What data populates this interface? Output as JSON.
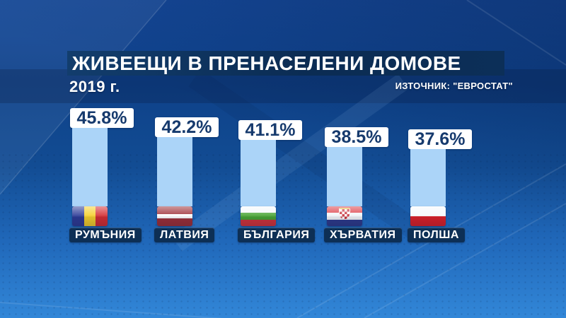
{
  "header": {
    "title": "ЖИВЕЕЩИ В ПРЕНАСЕЛЕНИ ДОМОВЕ",
    "year": "2019 г.",
    "source": "ИЗТОЧНИК: \"ЕВРОСТАТ\""
  },
  "chart_data": {
    "type": "bar",
    "title": "ЖИВЕЕЩИ В ПРЕНАСЕЛЕНИ ДОМОВЕ",
    "subtitle": "2019 г.",
    "source": "ИЗТОЧНИК: \"ЕВРОСТАТ\"",
    "unit": "%",
    "categories": [
      "РУМЪНИЯ",
      "ЛАТВИЯ",
      "БЪЛГАРИЯ",
      "ХЪРВАТИЯ",
      "ПОЛША"
    ],
    "values": [
      45.8,
      42.2,
      41.1,
      38.5,
      37.6
    ],
    "value_labels": [
      "45.8%",
      "42.2%",
      "41.1%",
      "38.5%",
      "37.6%"
    ],
    "ylim": [
      0,
      50
    ],
    "grid": false,
    "legend": false,
    "bar_color": "#abd4f8",
    "value_text_color": "#163a6d",
    "category_box_color": "#0d2f55"
  },
  "flags": [
    {
      "country": "РУМЪНИЯ",
      "orientation": "vertical",
      "stripes": [
        "#2c3a97",
        "#f5d02b",
        "#d42d33"
      ],
      "weights": [
        1,
        1,
        1
      ],
      "crest": false
    },
    {
      "country": "ЛАТВИЯ",
      "orientation": "horizontal",
      "stripes": [
        "#9e2f38",
        "#ffffff",
        "#9e2f38"
      ],
      "weights": [
        2,
        1,
        2
      ],
      "crest": false
    },
    {
      "country": "БЪЛГАРИЯ",
      "orientation": "horizontal",
      "stripes": [
        "#f4f8fb",
        "#47a433",
        "#d3333b"
      ],
      "weights": [
        1,
        1,
        1
      ],
      "crest": false
    },
    {
      "country": "ХЪРВАТИЯ",
      "orientation": "horizontal",
      "stripes": [
        "#dd3e46",
        "#f2f5f9",
        "#2c3a8e"
      ],
      "weights": [
        1,
        1,
        1
      ],
      "crest": true
    },
    {
      "country": "ПОЛША",
      "orientation": "horizontal",
      "stripes": [
        "#f6f9fc",
        "#dd1f28"
      ],
      "weights": [
        1,
        1
      ],
      "crest": false
    }
  ],
  "colors": {
    "background_top": "#0e4189",
    "background_bottom": "#3287d8",
    "title_bar": "#0c2f58",
    "text_light": "#ffffff"
  }
}
